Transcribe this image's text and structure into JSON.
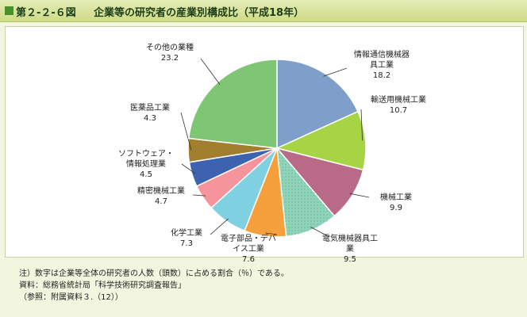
{
  "header": {
    "figure_number": "第２-２-６図",
    "title": "企業等の研究者の産業別構成比（平成18年）"
  },
  "chart_data": {
    "type": "pie",
    "title": "",
    "start_angle_deg": 0,
    "direction": "clockwise",
    "slices": [
      {
        "label": "情報通信機械器\n具工業",
        "value": 18.2,
        "value_text": "18.2",
        "color": "#7f9fcb"
      },
      {
        "label": "輸送用機械工業",
        "value": 10.7,
        "value_text": "10.7",
        "color": "#a6d445"
      },
      {
        "label": "機械工業",
        "value": 9.9,
        "value_text": "9.9",
        "color": "#b96a87"
      },
      {
        "label": "電気機械器具工\n業",
        "value": 9.5,
        "value_text": "9.5",
        "color": "#8fd4b8"
      },
      {
        "label": "電子部品・デバ\nイス工業",
        "value": 7.6,
        "value_text": "7.6",
        "color": "#f5a03c"
      },
      {
        "label": "化学工業",
        "value": 7.3,
        "value_text": "7.3",
        "color": "#7fd0e0"
      },
      {
        "label": "精密機械工業",
        "value": 4.7,
        "value_text": "4.7",
        "color": "#f5949b"
      },
      {
        "label": "ソフトウェア・\n情報処理業",
        "value": 4.5,
        "value_text": "4.5",
        "color": "#3d62b0"
      },
      {
        "label": "医薬品工業",
        "value": 4.3,
        "value_text": "4.3",
        "color": "#a27f2f"
      },
      {
        "label": "その他の業種",
        "value": 23.2,
        "value_text": "23.2",
        "color": "#7ec673"
      }
    ]
  },
  "notes": {
    "note": "注）数字は企業等全体の研究者の人数（頭数）に占める割合（％）である。",
    "source": "資料：総務省統計局「科学技術研究調査報告」",
    "reference": "（参照：附属資料３.（12））"
  }
}
